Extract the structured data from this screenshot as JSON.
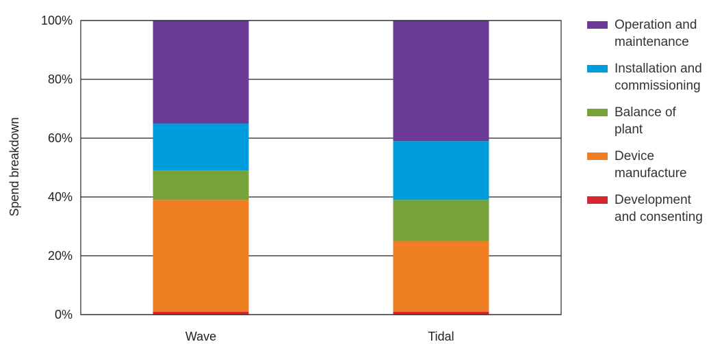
{
  "chart_data": {
    "type": "bar",
    "stacked": true,
    "categories": [
      "Wave",
      "Tidal"
    ],
    "series": [
      {
        "name": "Development and consenting",
        "color": "#d7272e",
        "values": [
          1,
          1
        ]
      },
      {
        "name": "Device manufacture",
        "color": "#f07f24",
        "values": [
          38,
          24
        ]
      },
      {
        "name": "Balance of plant",
        "color": "#77a23a",
        "values": [
          10,
          14
        ]
      },
      {
        "name": "Installation and commissioning",
        "color": "#009ddc",
        "values": [
          16,
          20
        ]
      },
      {
        "name": "Operation and maintenance",
        "color": "#6b3a96",
        "values": [
          35,
          41
        ]
      }
    ],
    "ylabel": "Spend breakdown",
    "ylim": [
      0,
      100
    ],
    "yticks": [
      "0%",
      "20%",
      "40%",
      "60%",
      "80%",
      "100%"
    ],
    "grid": true,
    "legend_position": "right",
    "legend_lines": [
      [
        "Operation and",
        "maintenance"
      ],
      [
        "Installation and",
        "commissioning"
      ],
      [
        "Balance of",
        "plant"
      ],
      [
        "Device",
        "manufacture"
      ],
      [
        "Development",
        "and consenting"
      ]
    ]
  }
}
